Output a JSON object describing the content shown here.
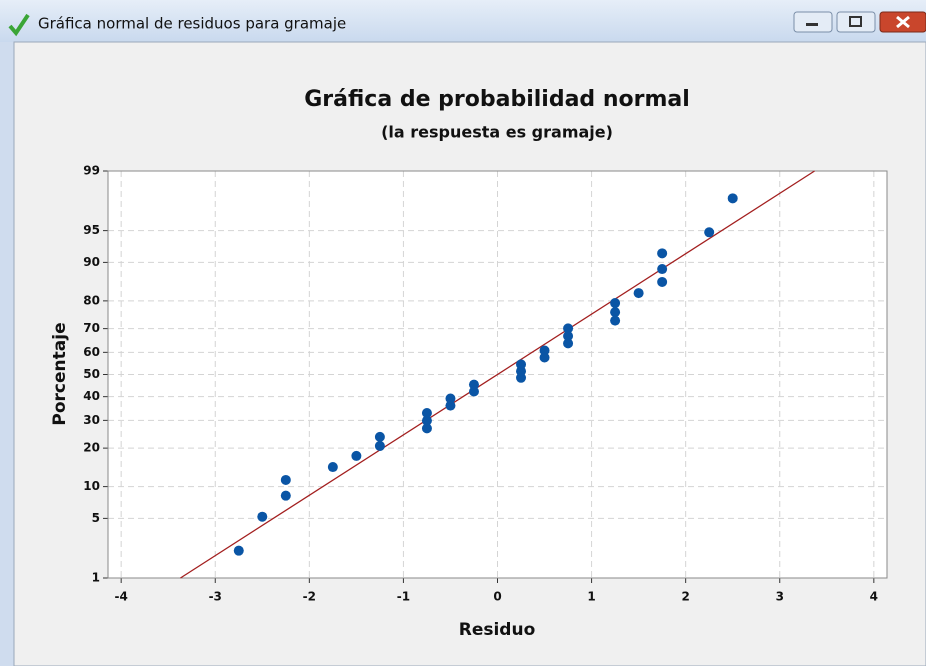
{
  "window": {
    "title": "Gráfica normal de residuos para gramaje"
  },
  "chart_data": {
    "type": "probability",
    "title": "Gráfica de probabilidad normal",
    "subtitle": "(la respuesta es gramaje)",
    "xlabel": "Residuo",
    "ylabel": "Porcentaje",
    "yscale": "normal-probability",
    "xlim": [
      -4.14,
      4.14
    ],
    "ylim": [
      1,
      99
    ],
    "xticks": [
      -4,
      -3,
      -2,
      -1,
      0,
      1,
      2,
      3,
      4
    ],
    "yticks": [
      1,
      5,
      10,
      20,
      30,
      40,
      50,
      60,
      70,
      80,
      90,
      95,
      99
    ],
    "grid": true,
    "color": "#0a55a5",
    "x": [
      -2.75,
      -2.5,
      -2.25,
      -2.25,
      -1.75,
      -1.5,
      -1.25,
      -1.25,
      -0.75,
      -0.75,
      -0.75,
      -0.5,
      -0.5,
      -0.25,
      -0.25,
      0.25,
      0.25,
      0.25,
      0.5,
      0.5,
      0.75,
      0.75,
      0.75,
      1.25,
      1.25,
      1.25,
      1.5,
      1.75,
      1.75,
      1.75,
      2.25,
      2.5
    ],
    "values": [
      2.2,
      5.2,
      8.3,
      11.4,
      14.5,
      17.6,
      20.7,
      23.8,
      26.9,
      29.9,
      33.0,
      36.1,
      39.2,
      42.3,
      45.4,
      48.5,
      51.5,
      54.6,
      57.7,
      60.8,
      63.9,
      67.0,
      70.1,
      73.1,
      76.2,
      79.3,
      82.4,
      85.5,
      88.6,
      91.7,
      94.8,
      97.8
    ],
    "fit_line": {
      "color": "#a31f1f",
      "x": [
        -3.37,
        3.37
      ],
      "y": [
        1,
        99
      ]
    }
  }
}
